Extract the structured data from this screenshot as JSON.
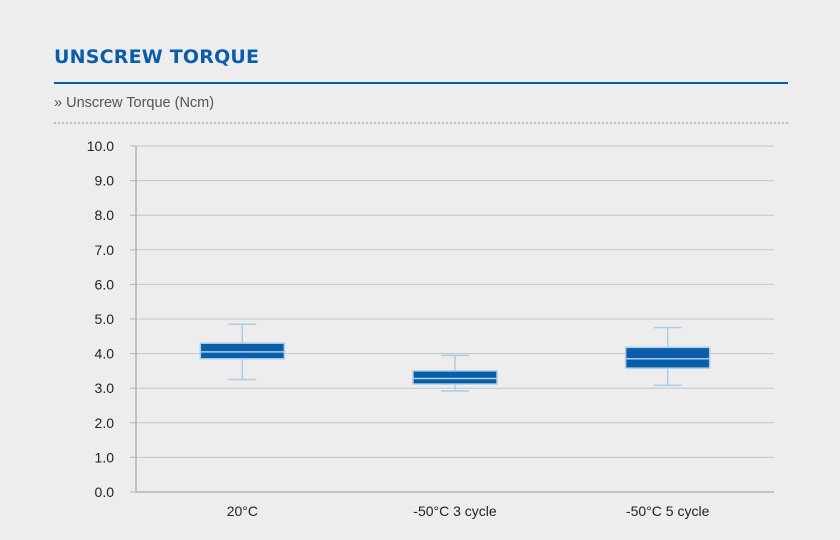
{
  "header": {
    "title": "UNSCREW TORQUE",
    "subtitle": "» Unscrew Torque (Ncm)"
  },
  "colors": {
    "accent": "#0a5ea8",
    "box_fill": "#0a5ea8",
    "box_edge": "#a9cdea",
    "whisker": "#a9cdea",
    "median": "#a9cdea",
    "grid": "#c6c6c6",
    "axis": "#b3b3b3"
  },
  "chart_data": {
    "type": "box",
    "ylim": [
      0,
      10
    ],
    "yticks": [
      "0.0",
      "1.0",
      "2.0",
      "3.0",
      "4.0",
      "5.0",
      "6.0",
      "7.0",
      "8.0",
      "9.0",
      "10.0"
    ],
    "grid": true,
    "categories": [
      "20°C",
      "-50°C 3 cycle",
      "-50°C 5 cycle"
    ],
    "boxes": [
      {
        "category": "20°C",
        "min": 3.25,
        "q1": 3.85,
        "median": 4.05,
        "q3": 4.3,
        "max": 4.85
      },
      {
        "category": "-50°C 3 cycle",
        "min": 2.92,
        "q1": 3.12,
        "median": 3.28,
        "q3": 3.5,
        "max": 3.95
      },
      {
        "category": "-50°C 5 cycle",
        "min": 3.08,
        "q1": 3.58,
        "median": 3.85,
        "q3": 4.18,
        "max": 4.75
      }
    ]
  }
}
